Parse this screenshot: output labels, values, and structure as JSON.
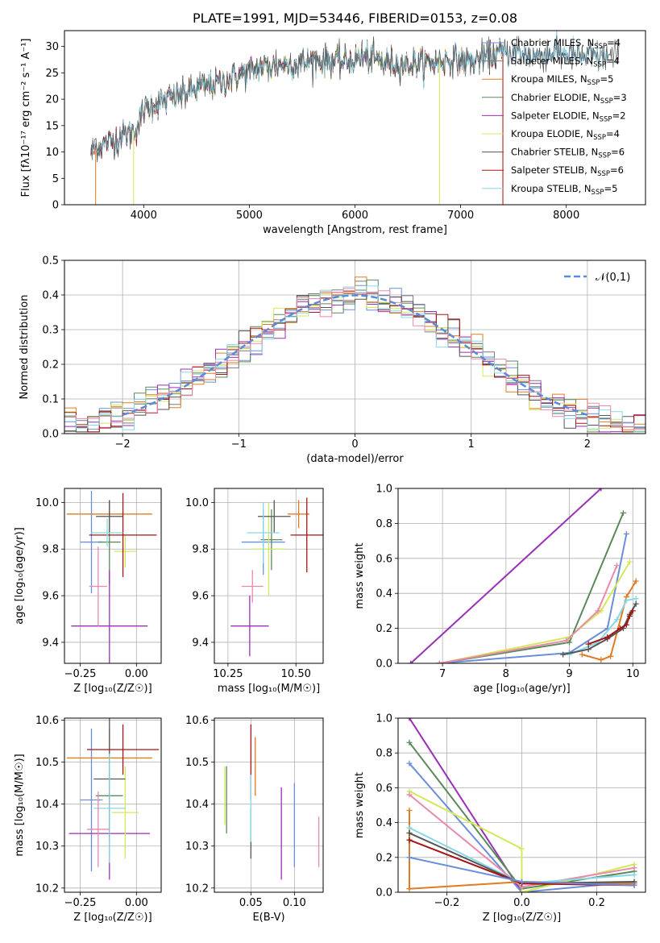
{
  "colors": {
    "Chabrier MILES": "#6a8fd8",
    "Salpeter MILES": "#7a7a7a",
    "Kroupa MILES": "#e07b22",
    "Chabrier ELODIE": "#5a8a5a",
    "Salpeter ELODIE": "#9b2fb5",
    "Kroupa ELODIE": "#d4e85a",
    "Chabrier STELIB": "#555555",
    "Salpeter STELIB": "#a51515",
    "Kroupa STELIB": "#88d8e8",
    "extra_pink": "#e88aa8",
    "gaussian": "#5a8ad8"
  },
  "chart_data": [
    {
      "id": "spectrum",
      "type": "line",
      "title": "PLATE=1991, MJD=53446, FIBERID=0153, z=0.08",
      "xlabel": "wavelength [Angstrom, rest frame]",
      "ylabel": "Flux [fλ10⁻¹⁷ erg cm⁻² s⁻¹ A⁻¹]",
      "xlim": [
        3250,
        8750
      ],
      "ylim": [
        0,
        33
      ],
      "xticks": [
        4000,
        5000,
        6000,
        7000,
        8000
      ],
      "yticks": [
        0,
        5,
        10,
        15,
        20,
        25,
        30
      ],
      "legend_position": "right",
      "legend": [
        {
          "name": "Chabrier MILES",
          "sub": "SSP",
          "n": "=4"
        },
        {
          "name": "Salpeter MILES",
          "sub": "SSP",
          "n": "=4"
        },
        {
          "name": "Kroupa MILES",
          "sub": "SSP",
          "n": "=5"
        },
        {
          "name": "Chabrier ELODIE",
          "sub": "SSP",
          "n": "=3"
        },
        {
          "name": "Salpeter ELODIE",
          "sub": "SSP",
          "n": "=2"
        },
        {
          "name": "Kroupa ELODIE",
          "sub": "SSP",
          "n": "=4"
        },
        {
          "name": "Chabrier STELIB",
          "sub": "SSP",
          "n": "=6"
        },
        {
          "name": "Salpeter STELIB",
          "sub": "SSP",
          "n": "=6"
        },
        {
          "name": "Kroupa STELIB",
          "sub": "SSP",
          "n": "=5"
        }
      ],
      "continuum": {
        "wavelength": [
          3500,
          3550,
          3700,
          3800,
          3900,
          3950,
          4000,
          4100,
          4300,
          4500,
          4700,
          4900,
          5100,
          5300,
          5500,
          5700,
          5900,
          6100,
          6300,
          6500,
          6700,
          6900,
          7100,
          7300,
          7500,
          7700,
          7900,
          8100,
          8300,
          8450
        ],
        "flux": [
          10,
          11,
          12,
          13,
          14,
          15,
          18,
          19,
          20.5,
          22,
          23,
          24.5,
          26,
          26.5,
          27,
          27.5,
          27,
          28,
          27,
          26.5,
          27,
          27.5,
          27,
          28.5,
          29,
          28,
          29,
          28,
          28,
          28
        ]
      }
    },
    {
      "id": "residuals",
      "type": "line",
      "xlabel": "(data-model)/error",
      "ylabel": "Normed distribution",
      "xlim": [
        -2.5,
        2.5
      ],
      "ylim": [
        0,
        0.5
      ],
      "xticks": [
        -2,
        -1,
        0,
        1,
        2
      ],
      "yticks": [
        0.0,
        0.1,
        0.2,
        0.3,
        0.4,
        0.5
      ],
      "grid": true,
      "legend_position": "top-right",
      "legend_label": "𝒩(0,1)"
    },
    {
      "id": "age_vs_Z",
      "type": "scatter",
      "xlabel": "Z [log₁₀(Z/Z☉)]",
      "ylabel": "age  [log₁₀(age/yr)]",
      "xlim": [
        -0.32,
        0.11
      ],
      "ylim": [
        9.31,
        10.06
      ],
      "xticks": [
        -0.25,
        0.0
      ],
      "yticks": [
        9.4,
        9.6,
        9.8,
        10.0
      ],
      "grid": true,
      "points": [
        {
          "model": "Chabrier MILES",
          "x": -0.2,
          "y": 9.83,
          "xerr": 0.05,
          "yerr": 0.22
        },
        {
          "model": "Kroupa MILES",
          "x": -0.12,
          "y": 9.95,
          "xerr": 0.19,
          "yerr": 0.03
        },
        {
          "model": "Chabrier ELODIE",
          "x": -0.12,
          "y": 9.83,
          "xerr": 0.05,
          "yerr": 0.18
        },
        {
          "model": "Salpeter ELODIE",
          "x": -0.12,
          "y": 9.47,
          "xerr": 0.17,
          "yerr": 0.24
        },
        {
          "model": "Kroupa ELODIE",
          "x": -0.05,
          "y": 9.79,
          "xerr": 0.05,
          "yerr": 0.07
        },
        {
          "model": "Chabrier STELIB",
          "x": -0.12,
          "y": 9.94,
          "xerr": 0.06,
          "yerr": 0.07
        },
        {
          "model": "Salpeter STELIB",
          "x": -0.06,
          "y": 9.86,
          "xerr": 0.15,
          "yerr": 0.18
        },
        {
          "model": "Kroupa STELIB",
          "x": -0.13,
          "y": 9.87,
          "xerr": 0.07,
          "yerr": 0.06
        },
        {
          "model": "extra_pink",
          "x": -0.17,
          "y": 9.64,
          "xerr": 0.04,
          "yerr": 0.17
        }
      ]
    },
    {
      "id": "age_vs_mass",
      "type": "scatter",
      "xlabel": "mass [log₁₀(M/M☉)]",
      "ylabel": "",
      "xlim": [
        10.2,
        10.6
      ],
      "ylim": [
        9.31,
        10.06
      ],
      "xticks": [
        10.25,
        10.5
      ],
      "yticks": [
        9.4,
        9.6,
        9.8,
        10.0
      ],
      "grid": true,
      "points": [
        {
          "model": "Chabrier MILES",
          "x": 10.38,
          "y": 9.83,
          "xerr": 0.08,
          "yerr": 0.14
        },
        {
          "model": "Kroupa MILES",
          "x": 10.51,
          "y": 9.95,
          "xerr": 0.04,
          "yerr": 0.06
        },
        {
          "model": "Chabrier ELODIE",
          "x": 10.41,
          "y": 9.84,
          "xerr": 0.04,
          "yerr": 0.13
        },
        {
          "model": "Salpeter ELODIE",
          "x": 10.33,
          "y": 9.47,
          "xerr": 0.07,
          "yerr": 0.13
        },
        {
          "model": "Kroupa ELODIE",
          "x": 10.4,
          "y": 9.8,
          "xerr": 0.06,
          "yerr": 0.2
        },
        {
          "model": "Chabrier STELIB",
          "x": 10.42,
          "y": 9.94,
          "xerr": 0.06,
          "yerr": 0.07
        },
        {
          "model": "Salpeter STELIB",
          "x": 10.54,
          "y": 9.86,
          "xerr": 0.06,
          "yerr": 0.16
        },
        {
          "model": "Kroupa STELIB",
          "x": 10.38,
          "y": 9.87,
          "xerr": 0.06,
          "yerr": 0.13
        },
        {
          "model": "extra_pink",
          "x": 10.34,
          "y": 9.64,
          "xerr": 0.04,
          "yerr": 0.07
        }
      ]
    },
    {
      "id": "weight_vs_age",
      "type": "line",
      "xlabel": "age  [log₁₀(age/yr)]",
      "ylabel": "mass weight",
      "xlim": [
        6.3,
        10.2
      ],
      "ylim": [
        0,
        1.0
      ],
      "xticks": [
        7,
        8,
        9,
        10
      ],
      "yticks": [
        0.0,
        0.2,
        0.4,
        0.6,
        0.8,
        1.0
      ],
      "grid": true,
      "series": [
        {
          "model": "Salpeter ELODIE",
          "x": [
            6.5,
            9.5
          ],
          "y": [
            0.0,
            1.0
          ]
        },
        {
          "model": "Chabrier ELODIE",
          "x": [
            6.95,
            9.0,
            9.85
          ],
          "y": [
            0.0,
            0.12,
            0.86
          ]
        },
        {
          "model": "Chabrier MILES",
          "x": [
            6.95,
            9.0,
            9.6,
            9.9
          ],
          "y": [
            0.0,
            0.06,
            0.2,
            0.74
          ]
        },
        {
          "model": "Kroupa ELODIE",
          "x": [
            6.95,
            9.0,
            9.5,
            9.95
          ],
          "y": [
            0.0,
            0.15,
            0.3,
            0.58
          ]
        },
        {
          "model": "extra_pink",
          "x": [
            6.95,
            8.95,
            9.45,
            9.75
          ],
          "y": [
            0.0,
            0.13,
            0.3,
            0.56
          ]
        },
        {
          "model": "Kroupa MILES",
          "x": [
            9.2,
            9.5,
            9.65,
            9.9,
            10.05
          ],
          "y": [
            0.05,
            0.02,
            0.04,
            0.38,
            0.47
          ]
        },
        {
          "model": "Kroupa STELIB",
          "x": [
            9.0,
            9.45,
            9.75,
            9.9,
            10.05
          ],
          "y": [
            0.05,
            0.12,
            0.25,
            0.36,
            0.37
          ]
        },
        {
          "model": "Chabrier STELIB",
          "x": [
            8.9,
            9.3,
            9.6,
            9.85,
            9.95,
            10.05
          ],
          "y": [
            0.05,
            0.08,
            0.14,
            0.2,
            0.28,
            0.34
          ]
        },
        {
          "model": "Salpeter STELIB",
          "x": [
            9.3,
            9.6,
            9.8,
            9.9,
            9.95,
            10.0
          ],
          "y": [
            0.11,
            0.15,
            0.2,
            0.22,
            0.27,
            0.3
          ]
        }
      ]
    },
    {
      "id": "mass_vs_Z",
      "type": "scatter",
      "xlabel": "Z [log₁₀(Z/Z☉)]",
      "ylabel": "mass [log₁₀(M/M☉)]",
      "xlim": [
        -0.32,
        0.11
      ],
      "ylim": [
        10.19,
        10.605
      ],
      "xticks": [
        -0.25,
        0.0
      ],
      "yticks": [
        10.2,
        10.3,
        10.4,
        10.5,
        10.6
      ],
      "grid": true,
      "points": [
        {
          "model": "Chabrier MILES",
          "x": -0.2,
          "y": 10.41,
          "xerr": 0.05,
          "yerr": 0.17
        },
        {
          "model": "Kroupa MILES",
          "x": -0.12,
          "y": 10.51,
          "xerr": 0.19,
          "yerr": 0.07
        },
        {
          "model": "Chabrier ELODIE",
          "x": -0.12,
          "y": 10.42,
          "xerr": 0.06,
          "yerr": 0.09
        },
        {
          "model": "Salpeter ELODIE",
          "x": -0.12,
          "y": 10.33,
          "xerr": 0.18,
          "yerr": 0.11
        },
        {
          "model": "Kroupa ELODIE",
          "x": -0.05,
          "y": 10.38,
          "xerr": 0.06,
          "yerr": 0.11
        },
        {
          "model": "Chabrier STELIB",
          "x": -0.12,
          "y": 10.46,
          "xerr": 0.07,
          "yerr": 0.15
        },
        {
          "model": "Salpeter STELIB",
          "x": -0.06,
          "y": 10.53,
          "xerr": 0.16,
          "yerr": 0.06
        },
        {
          "model": "Kroupa STELIB",
          "x": -0.12,
          "y": 10.39,
          "xerr": 0.07,
          "yerr": 0.13
        },
        {
          "model": "extra_pink",
          "x": -0.17,
          "y": 10.34,
          "xerr": 0.05,
          "yerr": 0.09
        }
      ]
    },
    {
      "id": "mass_vs_EBV",
      "type": "scatter",
      "xlabel": "E(B-V)",
      "ylabel": "",
      "xlim": [
        0.008,
        0.133
      ],
      "ylim": [
        10.19,
        10.605
      ],
      "xticks": [
        0.05,
        0.1
      ],
      "yticks": [
        10.2,
        10.3,
        10.4,
        10.5,
        10.6
      ],
      "grid": true,
      "points": [
        {
          "model": "Chabrier MILES",
          "x": 0.1,
          "y": 10.35,
          "yerr": 0.1
        },
        {
          "model": "Kroupa MILES",
          "x": 0.055,
          "y": 10.49,
          "yerr": 0.07
        },
        {
          "model": "Chabrier ELODIE",
          "x": 0.022,
          "y": 10.41,
          "yerr": 0.08
        },
        {
          "model": "Salpeter ELODIE",
          "x": 0.085,
          "y": 10.33,
          "yerr": 0.11
        },
        {
          "model": "Kroupa ELODIE",
          "x": 0.02,
          "y": 10.42,
          "yerr": 0.07
        },
        {
          "model": "Chabrier STELIB",
          "x": 0.05,
          "y": 10.33,
          "yerr": 0.06
        },
        {
          "model": "Salpeter STELIB",
          "x": 0.05,
          "y": 10.5,
          "yerr": 0.09
        },
        {
          "model": "Kroupa STELIB",
          "x": 0.05,
          "y": 10.39,
          "yerr": 0.08
        },
        {
          "model": "extra_pink",
          "x": 0.128,
          "y": 10.31,
          "yerr": 0.06
        }
      ]
    },
    {
      "id": "weight_vs_Z",
      "type": "line",
      "xlabel": "Z [log₁₀(Z/Z☉)]",
      "ylabel": "mass weight",
      "xlim": [
        -0.33,
        0.33
      ],
      "ylim": [
        0,
        1.0
      ],
      "xticks": [
        -0.2,
        0.0,
        0.2
      ],
      "yticks": [
        0.0,
        0.2,
        0.4,
        0.6,
        0.8,
        1.0
      ],
      "grid": true,
      "series": [
        {
          "model": "Salpeter ELODIE",
          "x": [
            -0.3,
            0.0
          ],
          "y": [
            1.0,
            0.0
          ]
        },
        {
          "model": "Chabrier ELODIE",
          "x": [
            -0.3,
            0.0,
            0.3
          ],
          "y": [
            0.86,
            0.02,
            0.12
          ]
        },
        {
          "model": "Chabrier MILES",
          "x": [
            -0.3,
            0.0,
            0.3
          ],
          "y": [
            0.74,
            0.0,
            0.06
          ]
        },
        {
          "model": "Kroupa ELODIE",
          "x": [
            -0.3,
            0.0,
            0.0,
            0.3
          ],
          "y": [
            0.58,
            0.25,
            0.0,
            0.16
          ]
        },
        {
          "model": "extra_pink",
          "x": [
            -0.3,
            0.0,
            0.3
          ],
          "y": [
            0.56,
            0.03,
            0.14
          ]
        },
        {
          "model": "Kroupa MILES",
          "x": [
            -0.3,
            -0.3,
            0.0,
            0.3
          ],
          "y": [
            0.47,
            0.02,
            0.06,
            0.05
          ]
        },
        {
          "model": "Kroupa STELIB",
          "x": [
            -0.3,
            0.0,
            0.3
          ],
          "y": [
            0.37,
            0.05,
            0.1
          ]
        },
        {
          "model": "Chabrier STELIB",
          "x": [
            -0.3,
            0.0,
            0.3
          ],
          "y": [
            0.34,
            0.05,
            0.06
          ]
        },
        {
          "model": "Salpeter STELIB",
          "x": [
            -0.3,
            0.0,
            0.3
          ],
          "y": [
            0.3,
            0.05,
            0.04
          ]
        },
        {
          "model": "Chabrier MILES",
          "x": [
            -0.3,
            0.0,
            0.3
          ],
          "y": [
            0.2,
            0.06,
            0.04
          ]
        }
      ]
    }
  ]
}
